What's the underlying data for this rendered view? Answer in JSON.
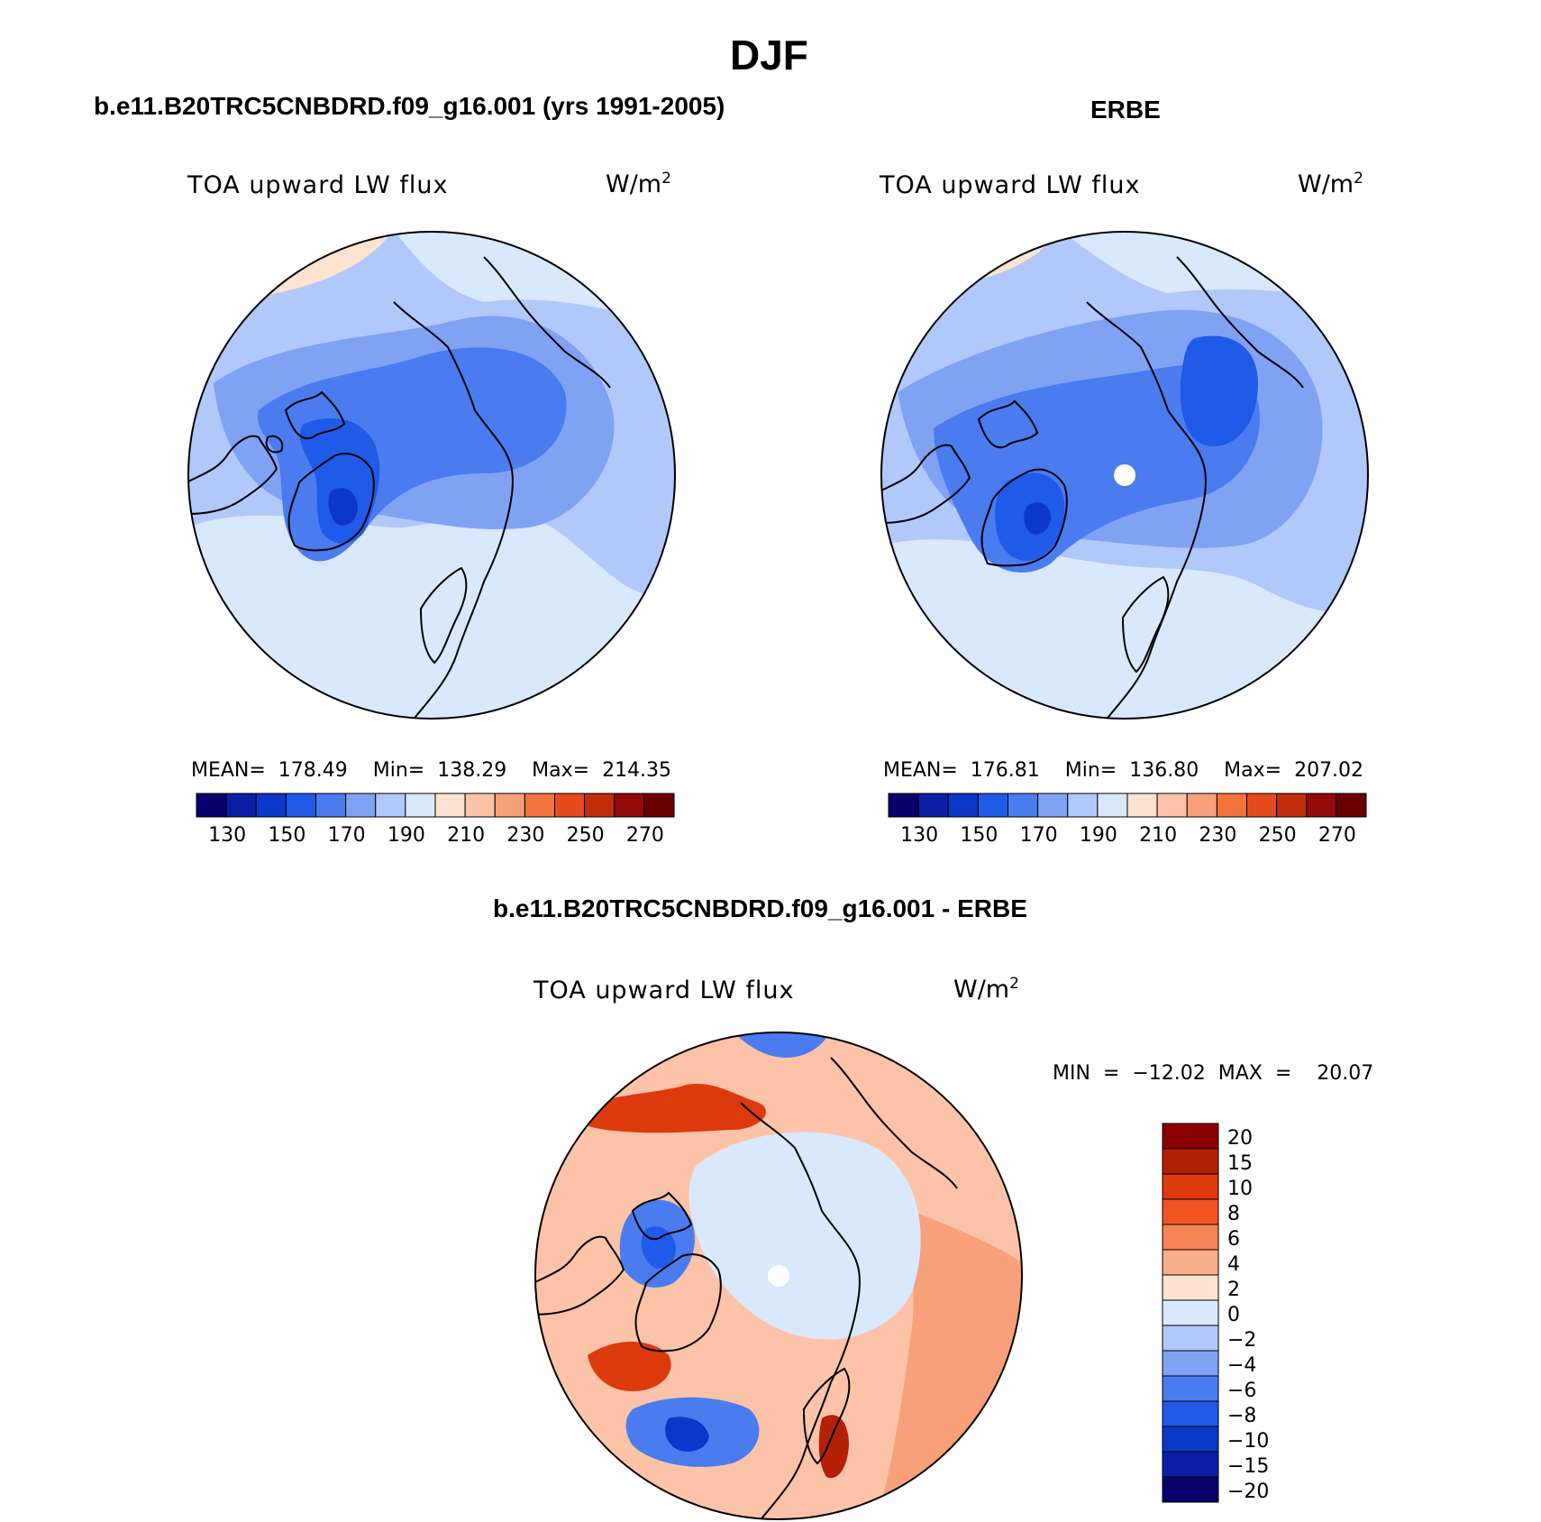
{
  "figure": {
    "title": "DJF"
  },
  "panels": {
    "model": {
      "header": "b.e11.B20TRC5CNBDRD.f09_g16.001 (yrs 1991-2005)",
      "variable": "TOA upward LW flux",
      "units_base": "W/m",
      "units_sup": "2",
      "stats": "MEAN=  178.49    Min=  138.29    Max=  214.35",
      "colorbar_labels": [
        "130",
        "150",
        "170",
        "190",
        "210",
        "230",
        "250",
        "270"
      ]
    },
    "obs": {
      "header": "ERBE",
      "variable": "TOA upward LW flux",
      "units_base": "W/m",
      "units_sup": "2",
      "stats": "MEAN=  176.81    Min=  136.80    Max=  207.02",
      "colorbar_labels": [
        "130",
        "150",
        "170",
        "190",
        "210",
        "230",
        "250",
        "270"
      ]
    },
    "diff": {
      "header": "b.e11.B20TRC5CNBDRD.f09_g16.001 - ERBE",
      "variable": "TOA upward LW flux",
      "units_base": "W/m",
      "units_sup": "2",
      "stats": "MIN  =  −12.02  MAX  =    20.07",
      "colorbar_labels": [
        "20",
        "15",
        "10",
        "8",
        "6",
        "4",
        "2",
        "0",
        "−2",
        "−4",
        "−6",
        "−8",
        "−10",
        "−15",
        "−20"
      ]
    }
  },
  "colors": {
    "abs_scale": [
      "#08006b",
      "#0a1fa6",
      "#0b38c8",
      "#1f5ae8",
      "#4a7cf0",
      "#7fa2f3",
      "#b0c8fa",
      "#d9e8fd",
      "#fde3d0",
      "#fcc3a8",
      "#f8a07a",
      "#f4733f",
      "#e54a1d",
      "#c22d0c",
      "#950909",
      "#6b0000"
    ],
    "diff_scale": [
      "#8b0000",
      "#b42005",
      "#dd3a0e",
      "#f25525",
      "#f58456",
      "#f8ae88",
      "#fde3d0",
      "#d9e8fd",
      "#b0c8fa",
      "#7fa2f3",
      "#4a7cf0",
      "#1f5ae8",
      "#0b38c8",
      "#0a1fa6",
      "#08006b"
    ]
  }
}
